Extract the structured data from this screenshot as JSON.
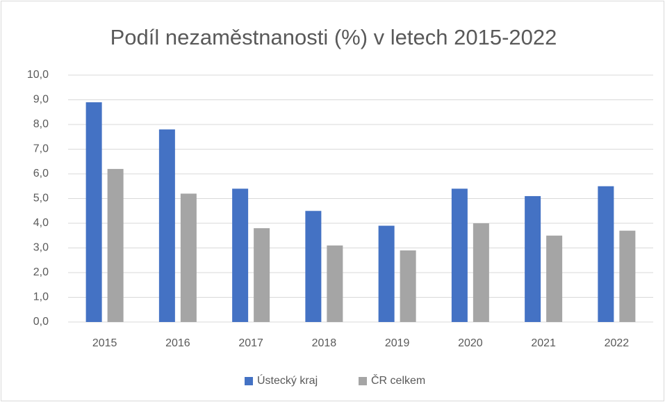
{
  "chart_data": {
    "type": "bar",
    "title": "Podíl nezaměstnanosti (%) v letech 2015-2022",
    "categories": [
      "2015",
      "2016",
      "2017",
      "2018",
      "2019",
      "2020",
      "2021",
      "2022"
    ],
    "series": [
      {
        "name": "Ústecký kraj",
        "color": "#4472c4",
        "values": [
          8.9,
          7.8,
          5.4,
          4.5,
          3.9,
          5.4,
          5.1,
          5.5
        ]
      },
      {
        "name": "ČR celkem",
        "color": "#a5a5a5",
        "values": [
          6.2,
          5.2,
          3.8,
          3.1,
          2.9,
          4.0,
          3.5,
          3.7
        ]
      }
    ],
    "ylim": [
      0,
      10
    ],
    "yticks": [
      {
        "value": 0,
        "label": "0,0"
      },
      {
        "value": 1,
        "label": "1,0"
      },
      {
        "value": 2,
        "label": "2,0"
      },
      {
        "value": 3,
        "label": "3,0"
      },
      {
        "value": 4,
        "label": "4,0"
      },
      {
        "value": 5,
        "label": "5,0"
      },
      {
        "value": 6,
        "label": "6,0"
      },
      {
        "value": 7,
        "label": "7,0"
      },
      {
        "value": 8,
        "label": "8,0"
      },
      {
        "value": 9,
        "label": "9,0"
      },
      {
        "value": 10,
        "label": "10,0"
      }
    ],
    "grid": true,
    "legend": "bottom"
  }
}
